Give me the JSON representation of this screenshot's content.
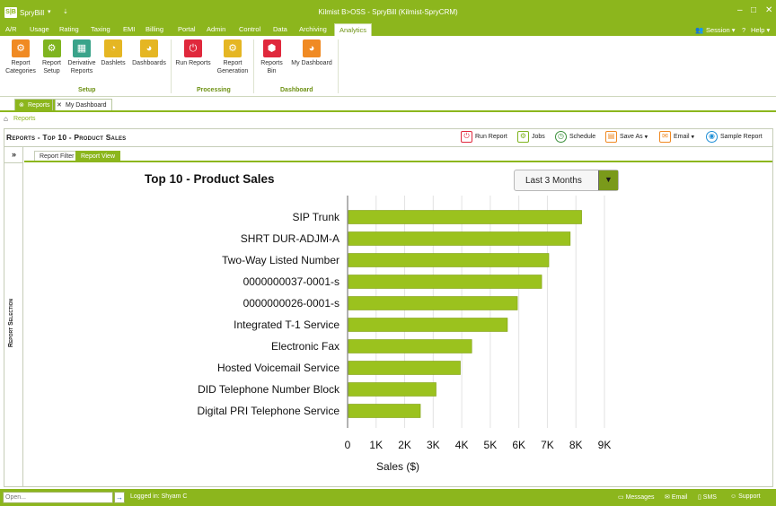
{
  "titlebar": {
    "app_logo": "S|B",
    "app_name": "SpryBill",
    "window_title": "Kilmist B>OSS - SpryBill (Kilmist-SpryCRM)",
    "minimize": "–",
    "maximize": "□",
    "close": "✕"
  },
  "menu": {
    "tabs": [
      "A/R",
      "Usage",
      "Rating",
      "Taxing",
      "EMI",
      "Billing",
      "Portal",
      "Admin",
      "Control",
      "Data",
      "Archiving",
      "Analytics"
    ],
    "active_tab": "Analytics",
    "session": "Session",
    "help": "Help"
  },
  "ribbon": {
    "buttons": [
      {
        "label_1": "Report",
        "label_2": "Categories",
        "icon": "report-categories-icon"
      },
      {
        "label_1": "Report",
        "label_2": "Setup",
        "icon": "report-setup-icon"
      },
      {
        "label_1": "Derivative",
        "label_2": "Reports",
        "icon": "derivative-reports-icon"
      },
      {
        "label_1": "Dashlets",
        "label_2": "",
        "icon": "dashlets-icon"
      },
      {
        "label_1": "Dashboards",
        "label_2": "",
        "icon": "dashboards-icon"
      },
      {
        "label_1": "Run Reports",
        "label_2": "",
        "icon": "run-reports-icon"
      },
      {
        "label_1": "Report",
        "label_2": "Generation",
        "icon": "report-generation-icon"
      },
      {
        "label_1": "Reports",
        "label_2": "Bin",
        "icon": "reports-bin-icon"
      },
      {
        "label_1": "My Dashboard",
        "label_2": "",
        "icon": "my-dashboard-icon"
      }
    ],
    "groups": [
      "Setup",
      "Processing",
      "Dashboard"
    ]
  },
  "doc_tabs": [
    "Reports",
    "My Dashboard"
  ],
  "breadcrumb": "Reports",
  "panel": {
    "title": "Reports - Top 10 - Product Sales",
    "toolbar": [
      "Run Report",
      "Jobs",
      "Schedule",
      "Save As",
      "Email",
      "Sample Report"
    ],
    "side_toggle": "»",
    "side_label": "Report Selection",
    "subtabs": [
      "Report Filter",
      "Report View"
    ]
  },
  "period_select": {
    "value": "Last 3 Months"
  },
  "chart_data": {
    "type": "bar",
    "orientation": "horizontal",
    "title": "Top 10 - Product Sales",
    "xlabel": "Sales ($)",
    "ylabel": "",
    "categories": [
      "SIP Trunk",
      "SHRT DUR-ADJM-A",
      "Two-Way Listed Number",
      "0000000037-0001-s",
      "0000000026-0001-s",
      "Integrated T-1 Service",
      "Electronic Fax",
      "Hosted Voicemail Service",
      "DID Telephone Number Block",
      "Digital PRI Telephone Service"
    ],
    "values": [
      8200,
      7800,
      7050,
      6800,
      5950,
      5600,
      4350,
      3950,
      3100,
      2550
    ],
    "xlim": [
      0,
      9000
    ],
    "ticks": [
      "0",
      "1K",
      "2K",
      "3K",
      "4K",
      "5K",
      "6K",
      "7K",
      "8K",
      "9K"
    ],
    "grid": true,
    "bar_color": "#9bc21e"
  },
  "status": {
    "open_placeholder": "Open...",
    "open_go": "→",
    "logged_in": "Logged in:  Shyam C",
    "items": [
      "Messages",
      "Email",
      "SMS",
      "Support"
    ]
  }
}
